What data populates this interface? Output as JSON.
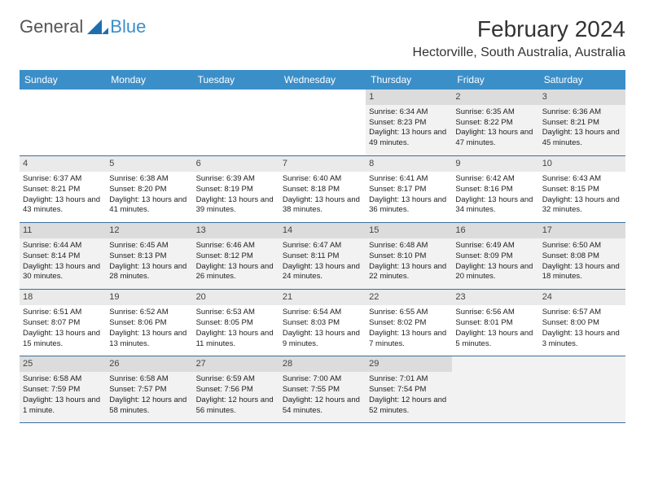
{
  "logo": {
    "part1": "General",
    "part2": "Blue"
  },
  "title": "February 2024",
  "location": "Hectorville, South Australia, Australia",
  "day_headers": [
    "Sunday",
    "Monday",
    "Tuesday",
    "Wednesday",
    "Thursday",
    "Friday",
    "Saturday"
  ],
  "colors": {
    "header_bg": "#3b8fc9",
    "header_text": "#ffffff",
    "daynum_bg": "#eaeaea",
    "alt_bg": "#f2f2f2",
    "border": "#3b6fa0"
  },
  "weeks": [
    [
      null,
      null,
      null,
      null,
      {
        "n": "1",
        "sunrise": "6:34 AM",
        "sunset": "8:23 PM",
        "dl": "13 hours and 49 minutes."
      },
      {
        "n": "2",
        "sunrise": "6:35 AM",
        "sunset": "8:22 PM",
        "dl": "13 hours and 47 minutes."
      },
      {
        "n": "3",
        "sunrise": "6:36 AM",
        "sunset": "8:21 PM",
        "dl": "13 hours and 45 minutes."
      }
    ],
    [
      {
        "n": "4",
        "sunrise": "6:37 AM",
        "sunset": "8:21 PM",
        "dl": "13 hours and 43 minutes."
      },
      {
        "n": "5",
        "sunrise": "6:38 AM",
        "sunset": "8:20 PM",
        "dl": "13 hours and 41 minutes."
      },
      {
        "n": "6",
        "sunrise": "6:39 AM",
        "sunset": "8:19 PM",
        "dl": "13 hours and 39 minutes."
      },
      {
        "n": "7",
        "sunrise": "6:40 AM",
        "sunset": "8:18 PM",
        "dl": "13 hours and 38 minutes."
      },
      {
        "n": "8",
        "sunrise": "6:41 AM",
        "sunset": "8:17 PM",
        "dl": "13 hours and 36 minutes."
      },
      {
        "n": "9",
        "sunrise": "6:42 AM",
        "sunset": "8:16 PM",
        "dl": "13 hours and 34 minutes."
      },
      {
        "n": "10",
        "sunrise": "6:43 AM",
        "sunset": "8:15 PM",
        "dl": "13 hours and 32 minutes."
      }
    ],
    [
      {
        "n": "11",
        "sunrise": "6:44 AM",
        "sunset": "8:14 PM",
        "dl": "13 hours and 30 minutes."
      },
      {
        "n": "12",
        "sunrise": "6:45 AM",
        "sunset": "8:13 PM",
        "dl": "13 hours and 28 minutes."
      },
      {
        "n": "13",
        "sunrise": "6:46 AM",
        "sunset": "8:12 PM",
        "dl": "13 hours and 26 minutes."
      },
      {
        "n": "14",
        "sunrise": "6:47 AM",
        "sunset": "8:11 PM",
        "dl": "13 hours and 24 minutes."
      },
      {
        "n": "15",
        "sunrise": "6:48 AM",
        "sunset": "8:10 PM",
        "dl": "13 hours and 22 minutes."
      },
      {
        "n": "16",
        "sunrise": "6:49 AM",
        "sunset": "8:09 PM",
        "dl": "13 hours and 20 minutes."
      },
      {
        "n": "17",
        "sunrise": "6:50 AM",
        "sunset": "8:08 PM",
        "dl": "13 hours and 18 minutes."
      }
    ],
    [
      {
        "n": "18",
        "sunrise": "6:51 AM",
        "sunset": "8:07 PM",
        "dl": "13 hours and 15 minutes."
      },
      {
        "n": "19",
        "sunrise": "6:52 AM",
        "sunset": "8:06 PM",
        "dl": "13 hours and 13 minutes."
      },
      {
        "n": "20",
        "sunrise": "6:53 AM",
        "sunset": "8:05 PM",
        "dl": "13 hours and 11 minutes."
      },
      {
        "n": "21",
        "sunrise": "6:54 AM",
        "sunset": "8:03 PM",
        "dl": "13 hours and 9 minutes."
      },
      {
        "n": "22",
        "sunrise": "6:55 AM",
        "sunset": "8:02 PM",
        "dl": "13 hours and 7 minutes."
      },
      {
        "n": "23",
        "sunrise": "6:56 AM",
        "sunset": "8:01 PM",
        "dl": "13 hours and 5 minutes."
      },
      {
        "n": "24",
        "sunrise": "6:57 AM",
        "sunset": "8:00 PM",
        "dl": "13 hours and 3 minutes."
      }
    ],
    [
      {
        "n": "25",
        "sunrise": "6:58 AM",
        "sunset": "7:59 PM",
        "dl": "13 hours and 1 minute."
      },
      {
        "n": "26",
        "sunrise": "6:58 AM",
        "sunset": "7:57 PM",
        "dl": "12 hours and 58 minutes."
      },
      {
        "n": "27",
        "sunrise": "6:59 AM",
        "sunset": "7:56 PM",
        "dl": "12 hours and 56 minutes."
      },
      {
        "n": "28",
        "sunrise": "7:00 AM",
        "sunset": "7:55 PM",
        "dl": "12 hours and 54 minutes."
      },
      {
        "n": "29",
        "sunrise": "7:01 AM",
        "sunset": "7:54 PM",
        "dl": "12 hours and 52 minutes."
      },
      null,
      null
    ]
  ],
  "labels": {
    "sunrise": "Sunrise:",
    "sunset": "Sunset:",
    "daylight": "Daylight:"
  }
}
